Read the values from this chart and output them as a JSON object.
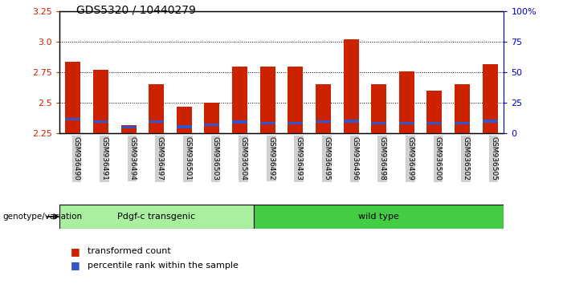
{
  "title": "GDS5320 / 10440279",
  "categories": [
    "GSM936490",
    "GSM936491",
    "GSM936494",
    "GSM936497",
    "GSM936501",
    "GSM936503",
    "GSM936504",
    "GSM936492",
    "GSM936493",
    "GSM936495",
    "GSM936496",
    "GSM936498",
    "GSM936499",
    "GSM936500",
    "GSM936502",
    "GSM936505"
  ],
  "red_values": [
    2.84,
    2.77,
    2.32,
    2.65,
    2.47,
    2.5,
    2.8,
    2.8,
    2.8,
    2.65,
    3.02,
    2.65,
    2.76,
    2.6,
    2.65,
    2.82
  ],
  "blue_values": [
    0.025,
    0.022,
    0.02,
    0.022,
    0.02,
    0.022,
    0.025,
    0.022,
    0.02,
    0.022,
    0.025,
    0.022,
    0.022,
    0.022,
    0.022,
    0.025
  ],
  "blue_bottoms": [
    2.355,
    2.338,
    2.29,
    2.338,
    2.295,
    2.31,
    2.33,
    2.325,
    2.325,
    2.338,
    2.338,
    2.325,
    2.325,
    2.325,
    2.325,
    2.338
  ],
  "ylim": [
    2.25,
    3.25
  ],
  "yticks_left": [
    2.25,
    2.5,
    2.75,
    3.0,
    3.25
  ],
  "yticks_right": [
    0,
    25,
    50,
    75,
    100
  ],
  "ytick_labels_right": [
    "0",
    "25",
    "50",
    "75",
    "100%"
  ],
  "group1_label": "Pdgf-c transgenic",
  "group2_label": "wild type",
  "group1_count": 7,
  "group2_count": 9,
  "genotype_label": "genotype/variation",
  "legend_red": "transformed count",
  "legend_blue": "percentile rank within the sample",
  "bar_width": 0.55,
  "red_color": "#cc2200",
  "blue_color": "#3355cc",
  "group1_bg": "#aaeea0",
  "group2_bg": "#44cc44",
  "tick_bg": "#d0d0d0",
  "base": 2.25
}
